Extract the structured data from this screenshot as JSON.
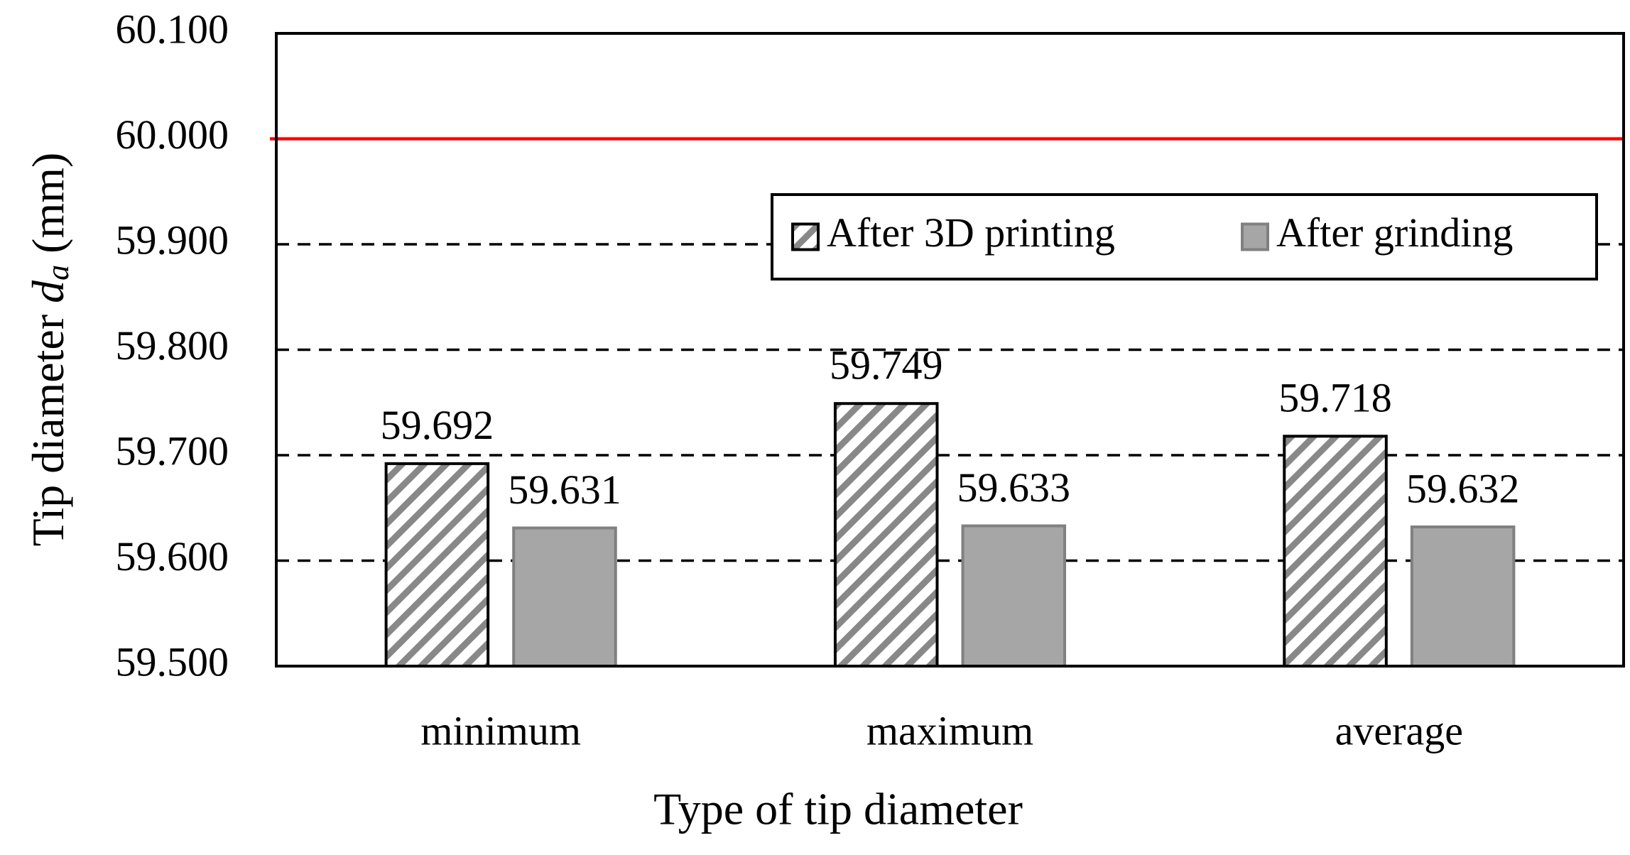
{
  "chart_data": {
    "type": "bar",
    "categories": [
      "minimum",
      "maximum",
      "average"
    ],
    "series": [
      {
        "name": "After 3D printing",
        "color": "#888888",
        "pattern": "hatch",
        "values": [
          59.692,
          59.749,
          59.718
        ]
      },
      {
        "name": "After grinding",
        "color": "#a6a6a6",
        "values": [
          59.631,
          59.633,
          59.632
        ]
      }
    ],
    "ylim": [
      59.5,
      60.1
    ],
    "yticks": [
      {
        "value": 59.5,
        "label": "59.500"
      },
      {
        "value": 59.6,
        "label": "59.600"
      },
      {
        "value": 59.7,
        "label": "59.700"
      },
      {
        "value": 59.8,
        "label": "59.800"
      },
      {
        "value": 59.9,
        "label": "59.900"
      },
      {
        "value": 60.0,
        "label": "60.000"
      },
      {
        "value": 60.1,
        "label": "60.100"
      }
    ],
    "grid": true,
    "reference_line": {
      "value": 60.0,
      "color": "#ff0000"
    },
    "x_label": "Type of tip diameter",
    "y_label": {
      "prefix": "Tip diameter ",
      "symbol": "d",
      "subscript": "a",
      "suffix": " (mm)"
    },
    "legend": "top-right"
  }
}
